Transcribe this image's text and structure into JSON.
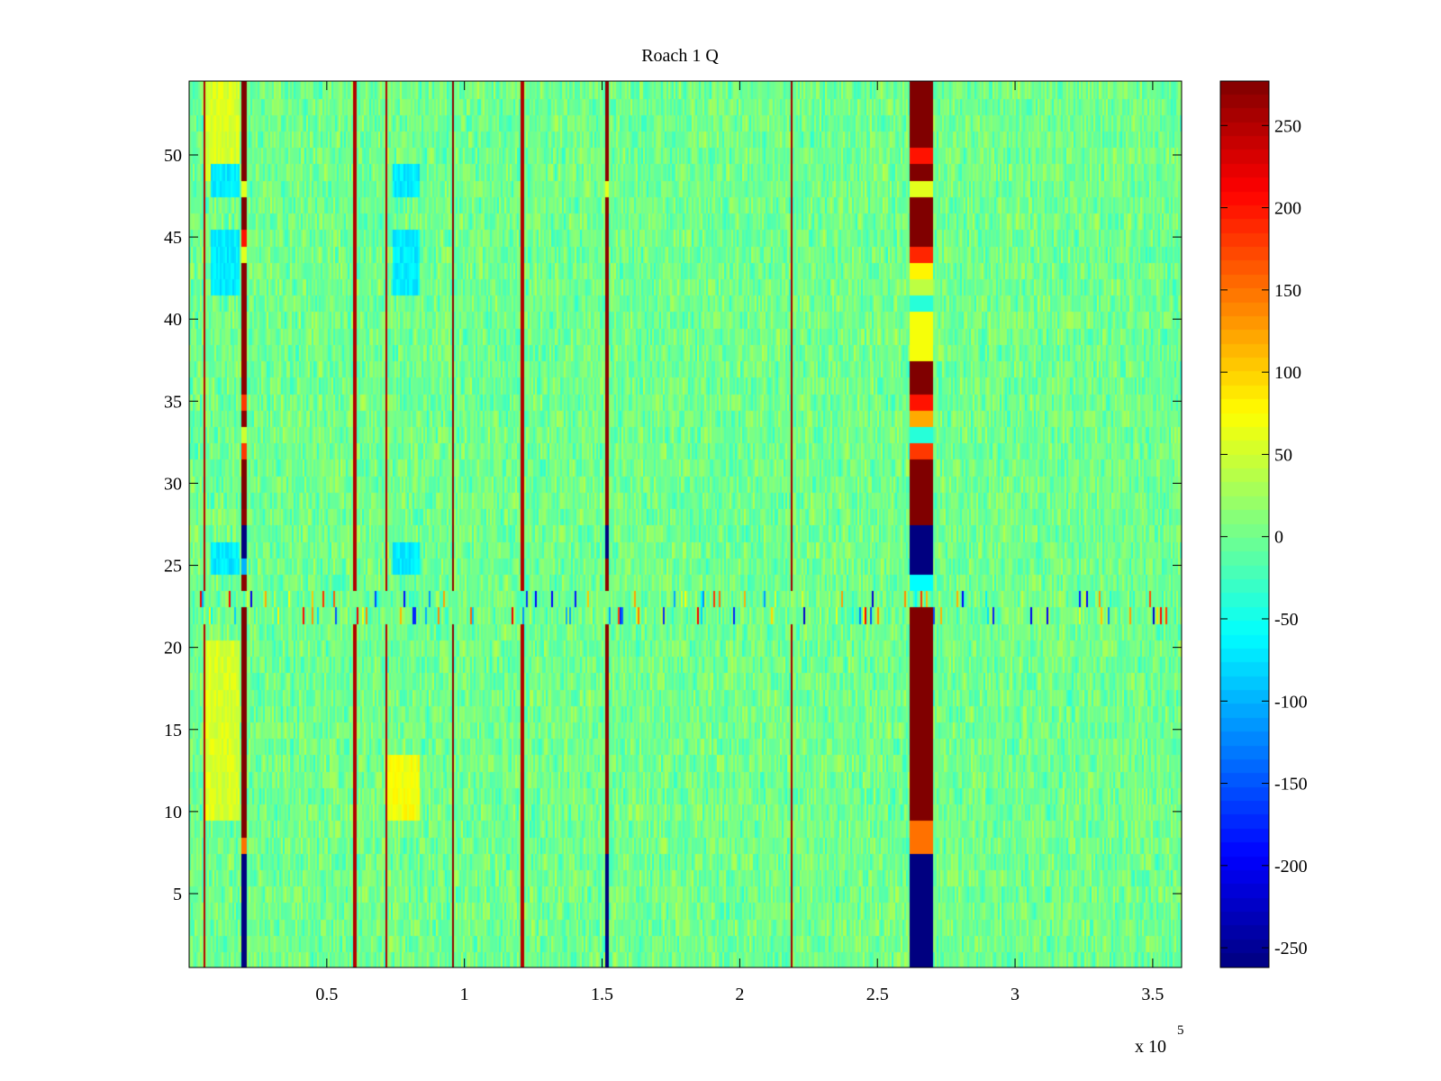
{
  "chart_data": {
    "type": "heatmap",
    "title": "Roach 1 Q",
    "xlabel": "",
    "ylabel": "",
    "x_exponent_label": "x 10",
    "x_exponent_power": "5",
    "x_scale": 100000,
    "xlim": [
      0,
      360500
    ],
    "ylim": [
      0.5,
      54.5
    ],
    "x_tick_values": [
      0.5,
      1,
      1.5,
      2,
      2.5,
      3,
      3.5
    ],
    "x_tick_labels": [
      "0.5",
      "1",
      "1.5",
      "2",
      "2.5",
      "3",
      "3.5"
    ],
    "y_tick_values": [
      5,
      10,
      15,
      20,
      25,
      30,
      35,
      40,
      45,
      50
    ],
    "y_tick_labels": [
      "5",
      "10",
      "15",
      "20",
      "25",
      "30",
      "35",
      "40",
      "45",
      "50"
    ],
    "rows": 54,
    "colormap": "jet",
    "clim": [
      -262,
      277
    ],
    "colorbar_tick_values": [
      250,
      200,
      150,
      100,
      50,
      0,
      -50,
      -100,
      -150,
      -200,
      -250
    ],
    "colorbar_tick_labels": [
      "250",
      "200",
      "150",
      "100",
      "50",
      "0",
      "-50",
      "-100",
      "-150",
      "-200",
      "-250"
    ],
    "background_mean": 0,
    "noise_amplitude": 40,
    "noisy_rows": [
      22,
      23
    ],
    "noisy_rows_amplitude": 220,
    "vertical_features": [
      {
        "x": 5500,
        "width": 1000,
        "value": 250
      },
      {
        "x": 20000,
        "width": 2000,
        "value": 270,
        "row_values": {
          "1-7": -262,
          "8": 150,
          "9-22": 277,
          "25": -100,
          "26": -262,
          "27": -262,
          "29-31": 277,
          "32": 180,
          "33": 50,
          "35": 180,
          "44": 60,
          "45": 200,
          "46-47": 277,
          "48": 60,
          "49-54": 277
        }
      },
      {
        "x": 60000,
        "width": 1200,
        "value": 250
      },
      {
        "x": 71500,
        "width": 800,
        "value": 250
      },
      {
        "x": 96000,
        "width": 1000,
        "value": 270
      },
      {
        "x": 121000,
        "width": 800,
        "value": 250
      },
      {
        "x": 152000,
        "width": 1200,
        "value": 270,
        "row_values": {
          "1-7": -262,
          "26-27": -262,
          "48": 60
        }
      },
      {
        "x": 219000,
        "width": 1000,
        "value": 260
      },
      {
        "x": 266000,
        "width": 8000,
        "value": 277,
        "row_values": {
          "1-7": -262,
          "8": 150,
          "9": 150,
          "10-22": 277,
          "24": -60,
          "25-27": -262,
          "29-31": 277,
          "32": 180,
          "33": -40,
          "34": 120,
          "35": 200,
          "38-40": 70,
          "41": -40,
          "42": 40,
          "43": 80,
          "44": 190,
          "45-47": 277,
          "48": 60,
          "49": 277,
          "50": 200,
          "51-54": 277
        }
      }
    ],
    "warm_patches": [
      {
        "x0": 5000,
        "x1": 18000,
        "rows": "10-20",
        "value": 55
      },
      {
        "x0": 72000,
        "x1": 84000,
        "rows": "10-13",
        "value": 70
      },
      {
        "x0": 5000,
        "x1": 18000,
        "rows": "49-54",
        "value": 55
      }
    ],
    "cool_patches": [
      {
        "x0": 8000,
        "x1": 18000,
        "rows": "25-26",
        "value": -70
      },
      {
        "x0": 8000,
        "x1": 18000,
        "rows": "42-45",
        "value": -70
      },
      {
        "x0": 8000,
        "x1": 18000,
        "rows": "48-49",
        "value": -70
      },
      {
        "x0": 74000,
        "x1": 84000,
        "rows": "25-26",
        "value": -70
      },
      {
        "x0": 74000,
        "x1": 84000,
        "rows": "42-45",
        "value": -70
      },
      {
        "x0": 74000,
        "x1": 84000,
        "rows": "48-49",
        "value": -70
      }
    ]
  }
}
